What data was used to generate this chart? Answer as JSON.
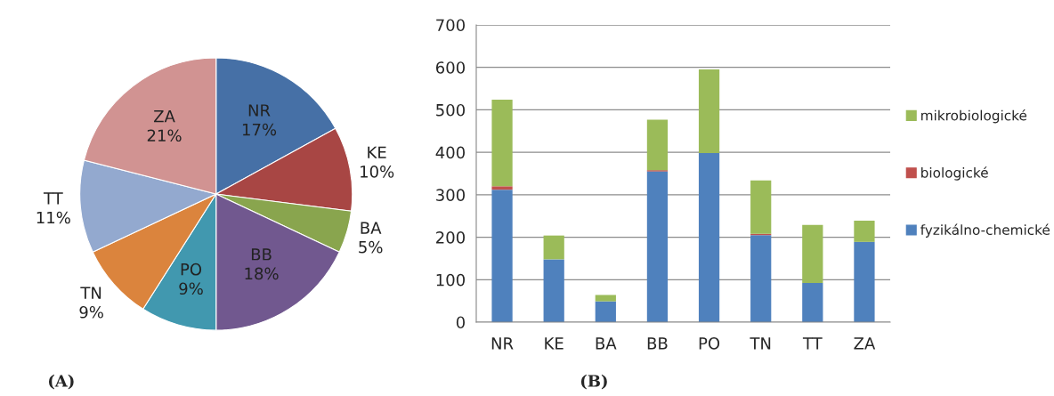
{
  "chart_data": [
    {
      "type": "pie",
      "categories": [
        "NR",
        "KE",
        "BA",
        "BB",
        "PO",
        "TN",
        "TT",
        "ZA"
      ],
      "values": [
        17,
        10,
        5,
        18,
        9,
        9,
        11,
        21
      ],
      "value_labels": [
        "17%",
        "10%",
        "5%",
        "18%",
        "9%",
        "9%",
        "11%",
        "21%"
      ],
      "colors": [
        "#4670a6",
        "#a84644",
        "#89a54e",
        "#71588f",
        "#4198af",
        "#db843d",
        "#93a9cf",
        "#d19392"
      ],
      "annotations": [
        "(A)"
      ]
    },
    {
      "type": "bar",
      "stacked": true,
      "categories": [
        "NR",
        "KE",
        "BA",
        "BB",
        "PO",
        "TN",
        "TT",
        "ZA"
      ],
      "series": [
        {
          "name": "fyzikálno-chemické",
          "color": "#4f81bd",
          "values": [
            312,
            148,
            49,
            355,
            398,
            205,
            92,
            189
          ]
        },
        {
          "name": "biologické",
          "color": "#c0504d",
          "values": [
            8,
            0,
            0,
            3,
            0,
            3,
            0,
            0
          ]
        },
        {
          "name": "mikrobiologické",
          "color": "#9bbb59",
          "values": [
            204,
            56,
            15,
            119,
            197,
            126,
            137,
            50
          ]
        }
      ],
      "ylim": [
        0,
        700
      ],
      "yticks": [
        0,
        100,
        200,
        300,
        400,
        500,
        600,
        700
      ],
      "grid": "y",
      "legend": "right",
      "annotations": [
        "(B)"
      ]
    }
  ]
}
